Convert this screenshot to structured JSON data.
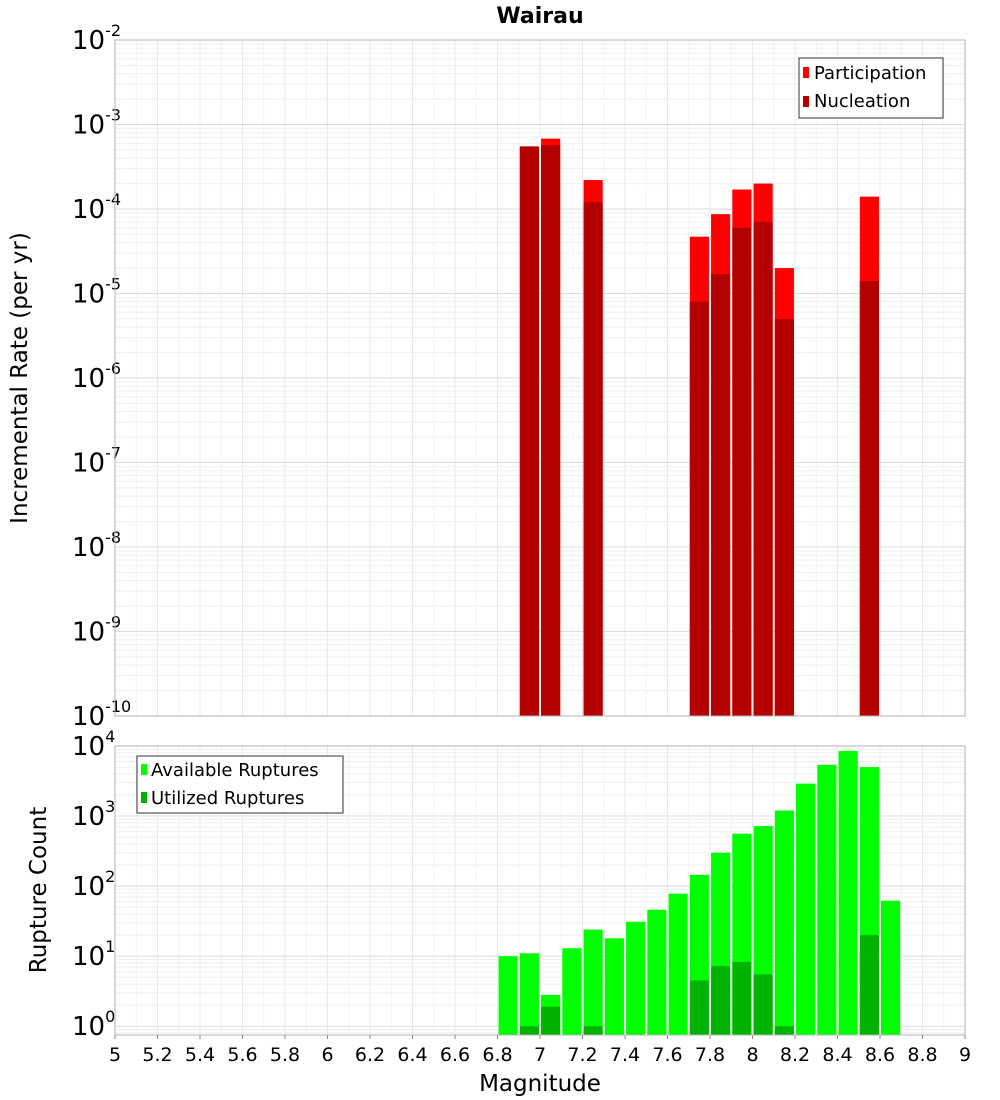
{
  "chart_data": [
    {
      "type": "bar",
      "title": "Wairau",
      "xlabel": "",
      "ylabel": "Incremental Rate (per yr)",
      "y_scale": "log",
      "ylim": [
        1e-10,
        0.01
      ],
      "xlim": [
        5,
        9
      ],
      "y_ticks": [
        {
          "base": "10",
          "exp": "-10"
        },
        {
          "base": "10",
          "exp": "-9"
        },
        {
          "base": "10",
          "exp": "-8"
        },
        {
          "base": "10",
          "exp": "-7"
        },
        {
          "base": "10",
          "exp": "-6"
        },
        {
          "base": "10",
          "exp": "-5"
        },
        {
          "base": "10",
          "exp": "-4"
        },
        {
          "base": "10",
          "exp": "-3"
        },
        {
          "base": "10",
          "exp": "-2"
        }
      ],
      "legend_position": "top-right",
      "grid": true,
      "series": [
        {
          "name": "Participation",
          "color": "#ff0000",
          "points": [
            {
              "x": 6.95,
              "y": 0.00055
            },
            {
              "x": 7.05,
              "y": 0.00068
            },
            {
              "x": 7.25,
              "y": 0.00022
            },
            {
              "x": 7.75,
              "y": 4.7e-05
            },
            {
              "x": 7.85,
              "y": 8.7e-05
            },
            {
              "x": 7.95,
              "y": 0.00017
            },
            {
              "x": 8.05,
              "y": 0.0002
            },
            {
              "x": 8.15,
              "y": 2e-05
            },
            {
              "x": 8.55,
              "y": 0.00014
            }
          ]
        },
        {
          "name": "Nucleation",
          "color": "#b30000",
          "points": [
            {
              "x": 6.95,
              "y": 0.00055
            },
            {
              "x": 7.05,
              "y": 0.00057
            },
            {
              "x": 7.25,
              "y": 0.00012
            },
            {
              "x": 7.75,
              "y": 8e-06
            },
            {
              "x": 7.85,
              "y": 1.7e-05
            },
            {
              "x": 7.95,
              "y": 6e-05
            },
            {
              "x": 8.05,
              "y": 7e-05
            },
            {
              "x": 8.15,
              "y": 5e-06
            },
            {
              "x": 8.55,
              "y": 1.4e-05
            }
          ]
        }
      ]
    },
    {
      "type": "bar",
      "title": "",
      "xlabel": "Magnitude",
      "ylabel": "Rupture Count",
      "y_scale": "log",
      "ylim": [
        0.75,
        10000
      ],
      "xlim": [
        5,
        9
      ],
      "x_ticks": [
        "5",
        "5.2",
        "5.4",
        "5.6",
        "5.8",
        "6",
        "6.2",
        "6.4",
        "6.6",
        "6.8",
        "7",
        "7.2",
        "7.4",
        "7.6",
        "7.8",
        "8",
        "8.2",
        "8.4",
        "8.6",
        "8.8",
        "9"
      ],
      "y_ticks": [
        {
          "base": "10",
          "exp": "0"
        },
        {
          "base": "10",
          "exp": "1"
        },
        {
          "base": "10",
          "exp": "2"
        },
        {
          "base": "10",
          "exp": "3"
        },
        {
          "base": "10",
          "exp": "4"
        }
      ],
      "legend_position": "top-left",
      "grid": true,
      "series": [
        {
          "name": "Available Ruptures",
          "color": "#00ff00",
          "points": [
            {
              "x": 6.85,
              "y": 10
            },
            {
              "x": 6.95,
              "y": 11
            },
            {
              "x": 7.05,
              "y": 2.8
            },
            {
              "x": 7.15,
              "y": 13
            },
            {
              "x": 7.25,
              "y": 24
            },
            {
              "x": 7.35,
              "y": 18
            },
            {
              "x": 7.45,
              "y": 31
            },
            {
              "x": 7.55,
              "y": 46
            },
            {
              "x": 7.65,
              "y": 78
            },
            {
              "x": 7.75,
              "y": 145
            },
            {
              "x": 7.85,
              "y": 300
            },
            {
              "x": 7.95,
              "y": 560
            },
            {
              "x": 8.05,
              "y": 720
            },
            {
              "x": 8.15,
              "y": 1200
            },
            {
              "x": 8.25,
              "y": 2900
            },
            {
              "x": 8.35,
              "y": 5400
            },
            {
              "x": 8.45,
              "y": 8500
            },
            {
              "x": 8.55,
              "y": 5000
            },
            {
              "x": 8.65,
              "y": 62
            }
          ]
        },
        {
          "name": "Utilized Ruptures",
          "color": "#00b300",
          "points": [
            {
              "x": 6.95,
              "y": 1
            },
            {
              "x": 7.05,
              "y": 1.9
            },
            {
              "x": 7.25,
              "y": 1
            },
            {
              "x": 7.75,
              "y": 4.5
            },
            {
              "x": 7.85,
              "y": 7.2
            },
            {
              "x": 7.95,
              "y": 8.3
            },
            {
              "x": 8.05,
              "y": 5.5
            },
            {
              "x": 8.15,
              "y": 1
            },
            {
              "x": 8.55,
              "y": 20
            }
          ]
        }
      ]
    }
  ]
}
